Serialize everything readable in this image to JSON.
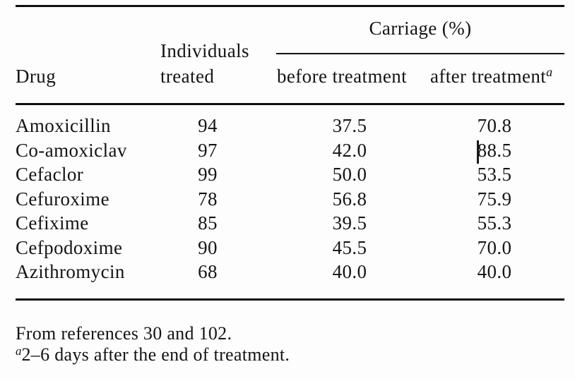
{
  "page": {
    "background": "#fdfdfd",
    "text_color": "#141414",
    "rule_color": "#101010"
  },
  "table": {
    "spanner_header": "Carriage (%)",
    "headers": {
      "drug": "Drug",
      "individuals_line1": "Individuals",
      "individuals_line2": "treated",
      "before": "before treatment",
      "after": "after treatment",
      "after_footnote_marker": "a"
    },
    "rows": [
      {
        "drug": "Amoxicillin",
        "treated": "94",
        "before": "37.5",
        "after": "70.8"
      },
      {
        "drug": "Co-amoxiclav",
        "treated": "97",
        "before": "42.0",
        "after": "88.5"
      },
      {
        "drug": "Cefaclor",
        "treated": "99",
        "before": "50.0",
        "after": "53.5"
      },
      {
        "drug": "Cefuroxime",
        "treated": "78",
        "before": "56.8",
        "after": "75.9"
      },
      {
        "drug": "Cefixime",
        "treated": "85",
        "before": "39.5",
        "after": "55.3"
      },
      {
        "drug": "Cefpodoxime",
        "treated": "90",
        "before": "45.5",
        "after": "70.0"
      },
      {
        "drug": "Azithromycin",
        "treated": "68",
        "before": "40.0",
        "after": "40.0"
      }
    ]
  },
  "footnotes": {
    "source_line": "From references 30 and 102.",
    "note_marker": "a",
    "note_text": "2–6 days after the end of treatment."
  },
  "chart_data": {
    "type": "table",
    "title": "Carriage (%)",
    "columns": [
      "Drug",
      "Individuals treated",
      "Carriage (%) before treatment",
      "Carriage (%) after treatment"
    ],
    "rows": [
      [
        "Amoxicillin",
        94,
        37.5,
        70.8
      ],
      [
        "Co-amoxiclav",
        97,
        42.0,
        88.5
      ],
      [
        "Cefaclor",
        99,
        50.0,
        53.5
      ],
      [
        "Cefuroxime",
        78,
        56.8,
        75.9
      ],
      [
        "Cefixime",
        85,
        39.5,
        55.3
      ],
      [
        "Cefpodoxime",
        90,
        45.5,
        70.0
      ],
      [
        "Azithromycin",
        68,
        40.0,
        40.0
      ]
    ],
    "notes": [
      "From references 30 and 102.",
      "a: 2–6 days after the end of treatment."
    ]
  }
}
